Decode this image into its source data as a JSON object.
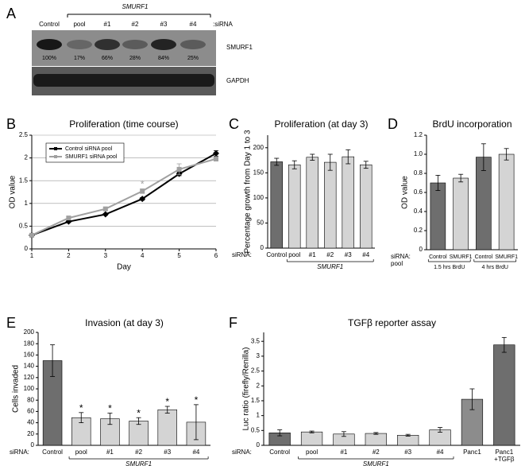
{
  "blot": {
    "label": "A",
    "group_label": "SMURF1",
    "lanes": [
      "Control",
      "pool",
      "#1",
      "#2",
      "#3",
      "#4"
    ],
    "axis_label": ":siRNA",
    "percents": [
      "100%",
      "17%",
      "66%",
      "28%",
      "84%",
      "25%"
    ],
    "rows": [
      "SMURF1",
      "GAPDH"
    ]
  },
  "chart_data": [
    {
      "type": "line",
      "label": "B",
      "title": "Proliferation (time course)",
      "x_label": "Day",
      "y_label": "OD value",
      "x": [
        1,
        2,
        3,
        4,
        5,
        6
      ],
      "xlim": [
        1,
        6
      ],
      "xticks": [
        1,
        2,
        3,
        4,
        5,
        6
      ],
      "ylim": [
        0,
        2.5
      ],
      "yticks": [
        0,
        0.5,
        1,
        1.5,
        2,
        2.5
      ],
      "grid": true,
      "legend": "upper left",
      "series": [
        {
          "name": "Control siRNA pool",
          "color": "#000000",
          "marker": "diamond",
          "values": [
            0.3,
            0.6,
            0.76,
            1.1,
            1.65,
            2.1
          ],
          "errors": [
            0.02,
            0.02,
            0.02,
            0.03,
            0.04,
            0.06
          ]
        },
        {
          "name": "SMURF1 siRNA pool",
          "color": "#a0a0a0",
          "marker": "square",
          "values": [
            0.3,
            0.68,
            0.88,
            1.27,
            1.75,
            1.98
          ],
          "errors": [
            0.02,
            0.03,
            0.04,
            0.05,
            0.12,
            0.05
          ],
          "marks": [
            null,
            null,
            null,
            "*",
            null,
            null
          ]
        }
      ]
    },
    {
      "type": "bar",
      "label": "C",
      "title": "Proliferation (at day 3)",
      "y_label": "Percentage growth from Day 1 to 3",
      "axis_prefix": "siRNA:",
      "group_label": "SMURF1",
      "categories": [
        "Control",
        "pool",
        "#1",
        "#2",
        "#3",
        "#4"
      ],
      "colors": [
        "#6e6e6e",
        "#d4d4d4",
        "#d4d4d4",
        "#d4d4d4",
        "#d4d4d4",
        "#d4d4d4"
      ],
      "ylim": [
        0,
        225
      ],
      "yticks": [
        0,
        50,
        100,
        150,
        200
      ],
      "series": [
        {
          "values": [
            172,
            166,
            181,
            171,
            182,
            166
          ],
          "errors": [
            7,
            8,
            6,
            16,
            14,
            7
          ]
        }
      ]
    },
    {
      "type": "bar",
      "label": "D",
      "title": "BrdU incorporation",
      "y_label": "OD value",
      "axis_prefix": "siRNA:",
      "axis_prefix_2": "pool",
      "groups": [
        "1.5 hrs BrdU",
        "4 hrs BrdU"
      ],
      "categories": [
        "Control",
        "SMURF1",
        "Control",
        "SMURF1"
      ],
      "colors": [
        "#6e6e6e",
        "#d4d4d4",
        "#6e6e6e",
        "#d4d4d4"
      ],
      "ylim": [
        0,
        1.2
      ],
      "yticks": [
        0,
        0.2,
        0.4,
        0.6,
        0.8,
        {
          "value": 1,
          "label": "1.0"
        },
        1.2
      ],
      "series": [
        {
          "values": [
            0.7,
            0.75,
            0.97,
            1.0
          ],
          "errors": [
            0.08,
            0.04,
            0.14,
            0.06
          ]
        }
      ]
    },
    {
      "type": "bar",
      "label": "E",
      "title": "Invasion (at day 3)",
      "y_label": "Cells invaded",
      "axis_prefix": "siRNA:",
      "group_label": "SMURF1",
      "categories": [
        "Control",
        "pool",
        "#1",
        "#2",
        "#3",
        "#4"
      ],
      "colors": [
        "#6e6e6e",
        "#d4d4d4",
        "#d4d4d4",
        "#d4d4d4",
        "#d4d4d4",
        "#d4d4d4"
      ],
      "ylim": [
        0,
        200
      ],
      "yticks": [
        0,
        20,
        40,
        60,
        80,
        100,
        120,
        140,
        160,
        180,
        200
      ],
      "series": [
        {
          "values": [
            150,
            49,
            47,
            43,
            63,
            41
          ],
          "errors": [
            28,
            9,
            10,
            6,
            6,
            31
          ],
          "marks": [
            null,
            "*",
            "*",
            "*",
            "*",
            "*"
          ]
        }
      ]
    },
    {
      "type": "bar",
      "label": "F",
      "title": "TGFβ reporter assay",
      "y_label": "Luc ratio (firefly/Renilla)",
      "axis_prefix": "siRNA:",
      "group_label": "SMURF1",
      "categories": [
        "Control",
        "pool",
        "#1",
        "#2",
        "#3",
        "#4",
        "Panc1",
        "Panc1 +TGFβ"
      ],
      "colors": [
        "#6e6e6e",
        "#d4d4d4",
        "#d4d4d4",
        "#d4d4d4",
        "#d4d4d4",
        "#d4d4d4",
        "#8c8c8c",
        "#6e6e6e"
      ],
      "ylim": [
        0,
        3.8
      ],
      "yticks": [
        0,
        0.5,
        1,
        1.5,
        2,
        2.5,
        3,
        3.5
      ],
      "series": [
        {
          "values": [
            0.42,
            0.45,
            0.38,
            0.4,
            0.34,
            0.52,
            1.55,
            3.38
          ],
          "errors": [
            0.1,
            0.03,
            0.08,
            0.03,
            0.03,
            0.08,
            0.35,
            0.25
          ]
        }
      ]
    }
  ]
}
